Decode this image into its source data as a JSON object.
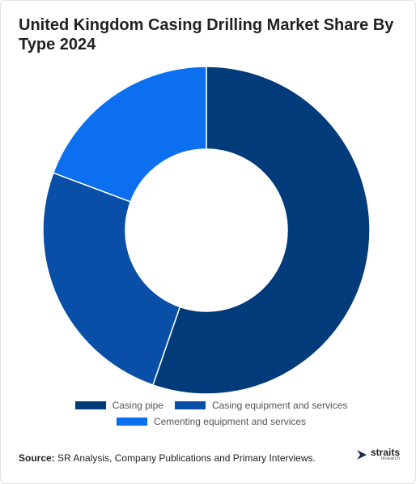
{
  "chart_data": {
    "type": "donut",
    "title": "United Kingdom Casing Drilling Market Share By Type 2024",
    "categories": [
      "Casing pipe",
      "Casing equipment and services",
      "Cementing equipment and services"
    ],
    "values": [
      55.3,
      25.4,
      19.3
    ],
    "colors": [
      "#023b79",
      "#0a4fa7",
      "#0b6ff0"
    ]
  },
  "source": {
    "label": "Source:",
    "text": "SR Analysis, Company Publications and Primary Interviews."
  },
  "logo": {
    "name": "straits",
    "tagline": "research"
  }
}
